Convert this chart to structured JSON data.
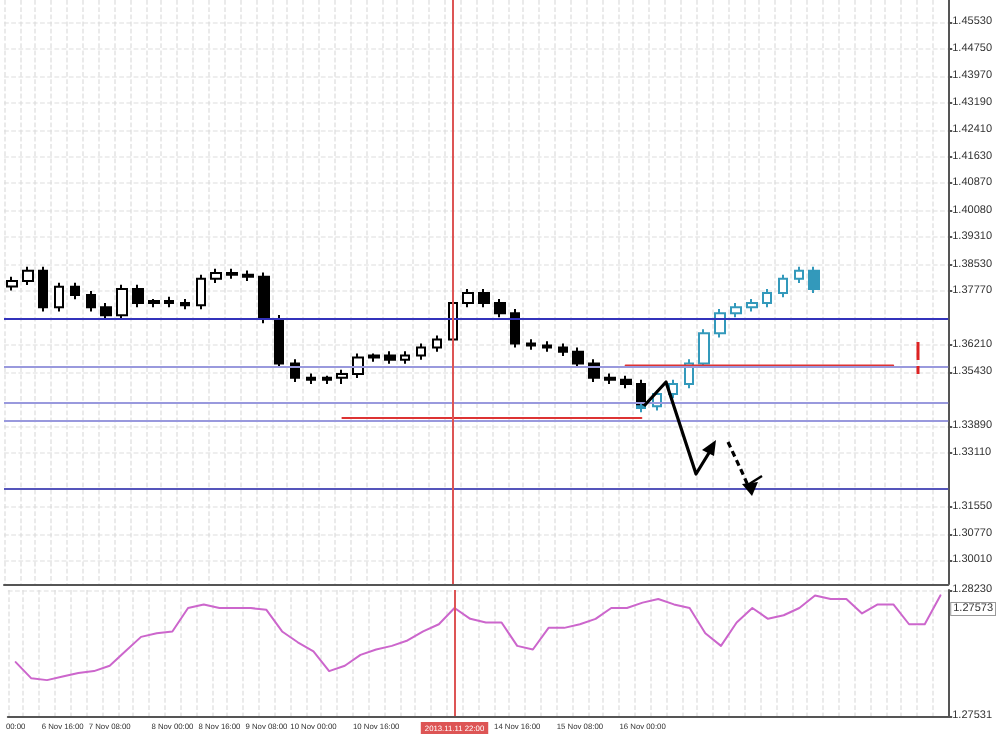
{
  "chart_data": [
    {
      "type": "candlestick",
      "categories": [
        "00:00",
        null,
        null,
        "6 Nov 16:00",
        null,
        null,
        "7 Nov 08:00",
        null,
        null,
        null,
        "8 Nov 00:00",
        null,
        null,
        "8 Nov 16:00",
        null,
        null,
        "9 Nov 08:00",
        null,
        null,
        "10 Nov 00:00",
        null,
        null,
        null,
        "10 Nov 16:00",
        null,
        null,
        null,
        null,
        "2013.11.11 22:00",
        null,
        null,
        null,
        "14 Nov 16:00",
        null,
        null,
        null,
        "15 Nov 08:00",
        null,
        null,
        null,
        "16 Nov 00:00",
        null,
        null,
        null,
        null,
        null,
        null,
        null,
        null,
        null,
        null,
        null,
        null,
        null,
        null,
        null,
        null,
        null,
        null,
        null
      ],
      "series": [
        {
          "color": "#000000",
          "ohlc": [
            [
              1.379,
              1.3818,
              1.3778,
              1.3806
            ],
            [
              1.3806,
              1.3847,
              1.3794,
              1.3835
            ],
            [
              1.3835,
              1.3847,
              1.3718,
              1.373
            ],
            [
              1.373,
              1.3801,
              1.3718,
              1.3789
            ],
            [
              1.3789,
              1.3801,
              1.3753,
              1.3765
            ],
            [
              1.3765,
              1.3777,
              1.3718,
              1.373
            ],
            [
              1.373,
              1.3742,
              1.3695,
              1.3707
            ],
            [
              1.3707,
              1.3795,
              1.3695,
              1.3783
            ],
            [
              1.3783,
              1.3795,
              1.373,
              1.3742
            ],
            [
              1.3742,
              1.3754,
              1.373,
              1.3748
            ],
            [
              1.3748,
              1.376,
              1.373,
              1.3742
            ],
            [
              1.3742,
              1.3754,
              1.3724,
              1.3736
            ],
            [
              1.3736,
              1.3824,
              1.3724,
              1.3812
            ],
            [
              1.3812,
              1.3841,
              1.38,
              1.3829
            ],
            [
              1.3829,
              1.3841,
              1.3812,
              1.3824
            ],
            [
              1.3824,
              1.3836,
              1.3806,
              1.3818
            ],
            [
              1.3818,
              1.383,
              1.3684,
              1.3696
            ],
            [
              1.3696,
              1.3708,
              1.3556,
              1.3568
            ],
            [
              1.3568,
              1.358,
              1.3515,
              1.3527
            ],
            [
              1.3527,
              1.3539,
              1.3509,
              1.3521
            ],
            [
              1.3521,
              1.3533,
              1.3509,
              1.3527
            ],
            [
              1.3527,
              1.355,
              1.3509,
              1.3538
            ],
            [
              1.3538,
              1.3597,
              1.3526,
              1.3585
            ],
            [
              1.3585,
              1.3597,
              1.3573,
              1.3591
            ],
            [
              1.3591,
              1.3603,
              1.3567,
              1.3579
            ],
            [
              1.3579,
              1.3603,
              1.3567,
              1.3591
            ],
            [
              1.3591,
              1.3626,
              1.3579,
              1.3614
            ],
            [
              1.3614,
              1.3649,
              1.3602,
              1.3637
            ],
            [
              1.3637,
              1.3754,
              1.3625,
              1.3742
            ],
            [
              1.3742,
              1.3783,
              1.373,
              1.3771
            ],
            [
              1.3771,
              1.3783,
              1.373,
              1.3742
            ],
            [
              1.3742,
              1.3754,
              1.3701,
              1.3713
            ],
            [
              1.3713,
              1.3725,
              1.3614,
              1.3626
            ],
            [
              1.3626,
              1.3638,
              1.3608,
              1.362
            ],
            [
              1.362,
              1.3632,
              1.3602,
              1.3614
            ],
            [
              1.3614,
              1.3626,
              1.359,
              1.3602
            ],
            [
              1.3602,
              1.3614,
              1.3556,
              1.3568
            ],
            [
              1.3568,
              1.358,
              1.3515,
              1.3527
            ],
            [
              1.3527,
              1.3539,
              1.3509,
              1.3521
            ],
            [
              1.3521,
              1.3533,
              1.3497,
              1.3509
            ],
            [
              1.3509,
              1.3521,
              1.3433,
              1.3445
            ],
            null,
            null,
            null,
            null,
            null,
            null,
            null,
            null,
            null,
            null,
            null,
            null,
            null,
            null,
            null,
            null,
            null,
            null,
            null
          ]
        },
        {
          "color": "#3399bb",
          "ohlc": [
            null,
            null,
            null,
            null,
            null,
            null,
            null,
            null,
            null,
            null,
            null,
            null,
            null,
            null,
            null,
            null,
            null,
            null,
            null,
            null,
            null,
            null,
            null,
            null,
            null,
            null,
            null,
            null,
            null,
            null,
            null,
            null,
            null,
            null,
            null,
            null,
            null,
            null,
            null,
            null,
            [
              1.344,
              1.3457,
              1.3428,
              1.3445
            ],
            [
              1.3445,
              1.3492,
              1.3433,
              1.348
            ],
            [
              1.348,
              1.3521,
              1.3468,
              1.3509
            ],
            [
              1.3509,
              1.358,
              1.3497,
              1.3568
            ],
            [
              1.3568,
              1.3667,
              1.3556,
              1.3655
            ],
            [
              1.3655,
              1.3725,
              1.3643,
              1.3713
            ],
            [
              1.3713,
              1.3742,
              1.3701,
              1.373
            ],
            [
              1.373,
              1.3754,
              1.3718,
              1.3742
            ],
            [
              1.3742,
              1.3783,
              1.373,
              1.3771
            ],
            [
              1.3771,
              1.3824,
              1.3759,
              1.3812
            ],
            [
              1.3812,
              1.3847,
              1.38,
              1.3835
            ],
            [
              1.3835,
              1.3847,
              1.3771,
              1.3783
            ],
            null,
            null,
            null,
            null,
            null,
            null,
            null,
            null
          ]
        },
        {
          "type": "line",
          "color": "#dd3333",
          "values": [
            null,
            null,
            null,
            null,
            null,
            null,
            null,
            null,
            null,
            null,
            null,
            null,
            null,
            null,
            null,
            null,
            null,
            null,
            null,
            null,
            null,
            1.3411,
            1.3411,
            1.3411,
            1.3411,
            1.3411,
            1.3411,
            1.3411,
            1.3411,
            1.3411,
            1.3411,
            1.3411,
            1.3411,
            1.3411,
            1.3411,
            1.3411,
            1.3411,
            1.3411,
            1.3411,
            1.3411,
            1.3411,
            null,
            null,
            null,
            null,
            null,
            null,
            null,
            null,
            null,
            null,
            null,
            null,
            null,
            null,
            null,
            null,
            null,
            null,
            null
          ]
        },
        {
          "type": "line",
          "color": "#dd3333",
          "values": [
            null,
            null,
            null,
            null,
            null,
            null,
            null,
            null,
            null,
            null,
            null,
            null,
            null,
            null,
            null,
            null,
            null,
            null,
            null,
            null,
            null,
            null,
            null,
            null,
            null,
            null,
            null,
            null,
            null,
            null,
            null,
            null,
            null,
            null,
            null,
            null,
            null,
            null,
            null,
            1.3562,
            1.3562,
            1.3562,
            1.3562,
            1.3562,
            1.3562,
            1.3562,
            1.3562,
            1.3562,
            1.3562,
            1.3562,
            1.3562,
            1.3562,
            1.3562,
            1.3562,
            1.3562,
            1.3562,
            1.3562,
            null,
            null,
            null
          ]
        }
      ],
      "ylim": [
        1.2933,
        1.4615
      ],
      "yticks": [
        {
          "value": 1.3001,
          "label": "1.30010"
        },
        {
          "value": 1.3077,
          "label": "1.30770"
        },
        {
          "value": 1.3155,
          "label": "1.31550"
        },
        {
          "value": 1.3311,
          "label": "1.33110"
        },
        {
          "value": 1.3389,
          "label": "1.33890"
        },
        {
          "value": 1.3543,
          "label": "1.35430"
        },
        {
          "value": 1.3621,
          "label": "1.36210"
        },
        {
          "value": 1.3777,
          "label": "1.37770"
        },
        {
          "value": 1.3853,
          "label": "1.38530"
        },
        {
          "value": 1.3931,
          "label": "1.39310"
        },
        {
          "value": 1.4008,
          "label": "1.40080"
        },
        {
          "value": 1.4087,
          "label": "1.40870"
        },
        {
          "value": 1.4163,
          "label": "1.41630"
        },
        {
          "value": 1.4241,
          "label": "1.42410"
        },
        {
          "value": 1.4319,
          "label": "1.43190"
        },
        {
          "value": 1.4397,
          "label": "1.43970"
        },
        {
          "value": 1.4475,
          "label": "1.44750"
        },
        {
          "value": 1.4553,
          "label": "1.45530"
        }
      ],
      "ref_lines": [
        {
          "axis": "y",
          "value": 1.3696,
          "color": "#3333bb"
        },
        {
          "axis": "y",
          "value": 1.3562,
          "color": "#9999dd"
        },
        {
          "axis": "y",
          "value": 1.3457,
          "color": "#9999dd"
        },
        {
          "axis": "y",
          "value": 1.3405,
          "color": "#9999dd"
        },
        {
          "axis": "y",
          "value": 1.3207,
          "color": "#5555bb"
        },
        {
          "axis": "x",
          "value": "2013.11.11 22:00",
          "color": "#dd5555"
        }
      ],
      "grid": true,
      "tick_labels": "y"
    },
    {
      "type": "line",
      "categories": [
        "00:00",
        null,
        null,
        "6 Nov 16:00",
        null,
        null,
        "7 Nov 08:00",
        null,
        null,
        null,
        "8 Nov 00:00",
        null,
        null,
        "8 Nov 16:00",
        null,
        null,
        "9 Nov 08:00",
        null,
        null,
        "10 Nov 00:00",
        null,
        null,
        null,
        "10 Nov 16:00",
        null,
        null,
        null,
        null,
        "2013.11.11 22:00",
        null,
        null,
        null,
        "14 Nov 16:00",
        null,
        null,
        null,
        "15 Nov 08:00",
        null,
        null,
        null,
        "16 Nov 00:00",
        null,
        null,
        null,
        null,
        null,
        null,
        null,
        null,
        null,
        null,
        null,
        null,
        null,
        null,
        null,
        null,
        null,
        null,
        null
      ],
      "series": [
        {
          "color": "#cc66cc",
          "values": [
            1.2783,
            1.2774,
            1.2773,
            1.2775,
            1.2777,
            1.2778,
            1.2781,
            1.2789,
            1.2797,
            1.2799,
            1.28,
            1.2813,
            1.2815,
            1.2813,
            1.2813,
            1.2813,
            1.2812,
            1.28,
            1.2794,
            1.2789,
            1.2778,
            1.2781,
            1.2787,
            1.279,
            1.2792,
            1.2795,
            1.28,
            1.2804,
            1.2813,
            1.2807,
            1.2805,
            1.2805,
            1.2792,
            1.279,
            1.2802,
            1.2802,
            1.2804,
            1.2807,
            1.2813,
            1.2813,
            1.2816,
            1.2818,
            1.2815,
            1.2813,
            1.2799,
            1.2792,
            1.2805,
            1.2813,
            1.2807,
            1.2809,
            1.2813,
            1.282,
            1.2818,
            1.2818,
            1.281,
            1.2815,
            1.2815,
            1.2804,
            1.2804,
            1.282
          ]
        }
      ],
      "ylim": [
        1.27531,
        1.2823
      ],
      "yticks": [
        {
          "value": 1.27531,
          "label": "1.27531"
        },
        {
          "value": 1.2823,
          "label": "1.28230"
        }
      ],
      "ref_lines": [
        {
          "axis": "x",
          "value": "2013.11.11 22:00",
          "color": "#dd5555"
        }
      ],
      "annotations": [
        "1.27573"
      ],
      "grid": true
    }
  ]
}
